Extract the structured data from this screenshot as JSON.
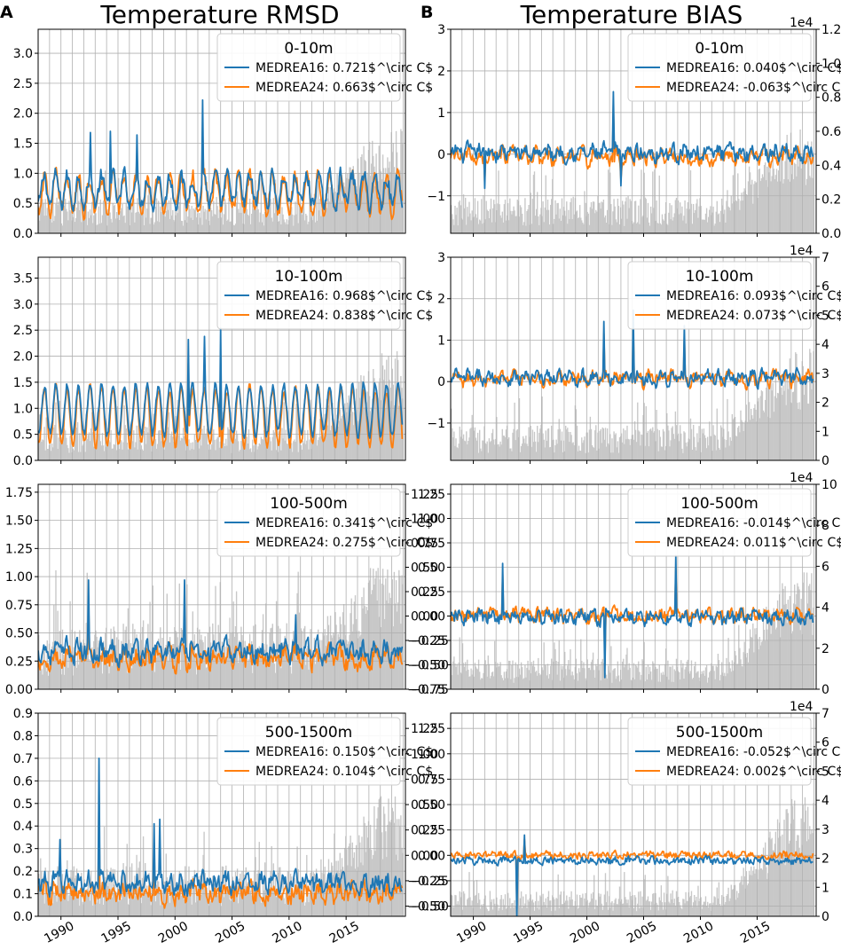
{
  "figure": {
    "panel_a": {
      "letter": "A",
      "title": "Temperature RMSD"
    },
    "panel_b": {
      "letter": "B",
      "title": "Temperature BIAS"
    }
  },
  "colors": {
    "medrea16": "#1f77b4",
    "medrea24": "#ff7f0e",
    "histogram": "#c8c8c8",
    "grid": "#b0b0b0"
  },
  "x_axis": {
    "min": 1988.0,
    "max": 2020.2,
    "ticks": [
      1990,
      1995,
      2000,
      2005,
      2010,
      2015
    ]
  },
  "chart_data": [
    {
      "type": "line",
      "column": "A",
      "title": "Temperature RMSD",
      "depth": "0-10m",
      "ylim": [
        0,
        3.4
      ],
      "yticks": [
        "0.0",
        "0.5",
        "1.0",
        "1.5",
        "2.0",
        "2.5",
        "3.0"
      ],
      "secondary_ylim": [
        0,
        1.2
      ],
      "secondary_yticks": [],
      "secondary_exponent": "",
      "series": [
        {
          "name": "MEDREA16",
          "label": "MEDREA16: 0.721$^\\circ C$",
          "mean": 0.721
        },
        {
          "name": "MEDREA24",
          "label": "MEDREA24: 0.663$^\\circ C$",
          "mean": 0.663
        }
      ],
      "profile": {
        "kind": "rmsd",
        "base": 0.62,
        "seasonal": 0.28,
        "noise": 0.2,
        "spikes": [
          [
            2002.4,
            2.22
          ],
          [
            1994.3,
            1.7
          ],
          [
            1996.7,
            1.64
          ],
          [
            1992.6,
            1.68
          ]
        ]
      },
      "hist_profile": {
        "early": 0.14,
        "late": 0.3
      }
    },
    {
      "type": "line",
      "column": "B",
      "title": "Temperature BIAS",
      "depth": "0-10m",
      "ylim": [
        -1.9,
        3.0
      ],
      "yticks": [
        "−1",
        "0",
        "1",
        "2",
        "3"
      ],
      "secondary_ylim": [
        0,
        1.2
      ],
      "secondary_yticks": [
        "0.0",
        "0.2",
        "0.4",
        "0.6",
        "0.8",
        "1.0",
        "1.2"
      ],
      "secondary_exponent": "1e4",
      "series": [
        {
          "name": "MEDREA16",
          "label": "MEDREA16: 0.040$^\\circ C$",
          "mean": 0.04
        },
        {
          "name": "MEDREA24",
          "label": "MEDREA24: -0.063$^\\circ C$",
          "mean": -0.063
        }
      ],
      "profile": {
        "kind": "bias",
        "base": 0.0,
        "seasonal": 0.18,
        "noise": 0.25,
        "spikes": [
          [
            2002.3,
            1.5
          ],
          [
            1991.0,
            -0.82
          ],
          [
            2003.0,
            -0.76
          ]
        ]
      },
      "hist_profile": {
        "early": 0.14,
        "late": 0.3
      }
    },
    {
      "type": "line",
      "column": "A",
      "title": "Temperature RMSD",
      "depth": "10-100m",
      "ylim": [
        0,
        3.9
      ],
      "yticks": [
        "0.0",
        "0.5",
        "1.0",
        "1.5",
        "2.0",
        "2.5",
        "3.0",
        "3.5"
      ],
      "secondary_ylim": [
        0,
        7
      ],
      "secondary_yticks": [],
      "secondary_exponent": "",
      "series": [
        {
          "name": "MEDREA16",
          "label": "MEDREA16: 0.968$^\\circ C$",
          "mean": 0.968
        },
        {
          "name": "MEDREA24",
          "label": "MEDREA24: 0.838$^\\circ C$",
          "mean": 0.838
        }
      ],
      "profile": {
        "kind": "rmsd",
        "base": 0.82,
        "seasonal": 0.55,
        "noise": 0.12,
        "spikes": [
          [
            2004.0,
            2.54
          ],
          [
            2002.6,
            2.38
          ],
          [
            2001.2,
            2.32
          ]
        ]
      },
      "hist_profile": {
        "early": 0.14,
        "late": 0.32
      }
    },
    {
      "type": "line",
      "column": "B",
      "title": "Temperature BIAS",
      "depth": "10-100m",
      "ylim": [
        -1.9,
        3.0
      ],
      "yticks": [
        "−1",
        "0",
        "1",
        "2",
        "3"
      ],
      "secondary_ylim": [
        0,
        7
      ],
      "secondary_yticks": [
        "0",
        "1",
        "2",
        "3",
        "4",
        "5",
        "6",
        "7"
      ],
      "secondary_exponent": "1e4",
      "series": [
        {
          "name": "MEDREA16",
          "label": "MEDREA16: 0.093$^\\circ C$",
          "mean": 0.093
        },
        {
          "name": "MEDREA24",
          "label": "MEDREA24: 0.073$^\\circ C$",
          "mean": 0.073
        }
      ],
      "profile": {
        "kind": "bias",
        "base": 0.08,
        "seasonal": 0.18,
        "noise": 0.22,
        "spikes": [
          [
            2004.1,
            1.72
          ],
          [
            2001.5,
            1.45
          ],
          [
            2008.6,
            1.35
          ]
        ]
      },
      "hist_profile": {
        "early": 0.14,
        "late": 0.32
      }
    },
    {
      "type": "line",
      "column": "A",
      "title": "Temperature RMSD",
      "depth": "100-500m",
      "ylim": [
        0,
        1.82
      ],
      "yticks": [
        "0.00",
        "0.25",
        "0.50",
        "0.75",
        "1.00",
        "1.25",
        "1.50",
        "1.75"
      ],
      "secondary_ylim": [
        -0.75,
        1.35
      ],
      "secondary_yticks": [
        "−0.75",
        "−0.50",
        "−0.25",
        "0.00",
        "0.25",
        "0.50",
        "0.75",
        "1.00",
        "1.25"
      ],
      "secondary_exponent": "",
      "series": [
        {
          "name": "MEDREA16",
          "label": "MEDREA16: 0.341$^\\circ C$",
          "mean": 0.341
        },
        {
          "name": "MEDREA24",
          "label": "MEDREA24: 0.275$^\\circ C$",
          "mean": 0.275
        }
      ],
      "profile": {
        "kind": "rmsd",
        "base": 0.32,
        "seasonal": 0.05,
        "noise": 0.12,
        "spikes": [
          [
            1992.4,
            0.97
          ],
          [
            2000.8,
            0.97
          ],
          [
            2010.6,
            0.66
          ]
        ]
      },
      "hist_profile": {
        "early": 0.26,
        "late": 0.36
      }
    },
    {
      "type": "line",
      "column": "B",
      "title": "Temperature BIAS",
      "depth": "100-500m",
      "ylim": [
        -0.75,
        1.35
      ],
      "yticks": [
        "−0.75",
        "−0.50",
        "−0.25",
        "0.00",
        "0.25",
        "0.50",
        "0.75",
        "1.00",
        "1.25"
      ],
      "secondary_ylim": [
        0,
        10
      ],
      "secondary_yticks": [
        "0",
        "2",
        "4",
        "6",
        "8",
        "10"
      ],
      "secondary_exponent": "1e4",
      "series": [
        {
          "name": "MEDREA16",
          "label": "MEDREA16: -0.014$^\\circ C$",
          "mean": -0.014
        },
        {
          "name": "MEDREA24",
          "label": "MEDREA24: 0.011$^\\circ C$",
          "mean": 0.011
        }
      ],
      "profile": {
        "kind": "bias",
        "base": 0.0,
        "seasonal": 0.05,
        "noise": 0.1,
        "spikes": [
          [
            1992.6,
            0.54
          ],
          [
            2007.8,
            0.62
          ],
          [
            2001.6,
            -0.63
          ]
        ]
      },
      "hist_profile": {
        "early": 0.12,
        "late": 0.34
      }
    },
    {
      "type": "line",
      "column": "A",
      "title": "Temperature RMSD",
      "depth": "500-1500m",
      "ylim": [
        0,
        0.9
      ],
      "yticks": [
        "0.0",
        "0.1",
        "0.2",
        "0.3",
        "0.4",
        "0.5",
        "0.6",
        "0.7",
        "0.8",
        "0.9"
      ],
      "secondary_ylim": [
        -0.6,
        1.4
      ],
      "secondary_yticks": [
        "−0.50",
        "−0.25",
        "0.00",
        "0.25",
        "0.50",
        "0.75",
        "1.00",
        "1.25"
      ],
      "secondary_exponent": "",
      "series": [
        {
          "name": "MEDREA16",
          "label": "MEDREA16: 0.150$^\\circ C$",
          "mean": 0.15
        },
        {
          "name": "MEDREA24",
          "label": "MEDREA24: 0.104$^\\circ C$",
          "mean": 0.104
        }
      ],
      "profile": {
        "kind": "rmsd",
        "base": 0.15,
        "seasonal": 0.02,
        "noise": 0.06,
        "spikes": [
          [
            1993.3,
            0.7
          ],
          [
            1998.7,
            0.43
          ],
          [
            1998.2,
            0.41
          ],
          [
            1989.9,
            0.34
          ]
        ]
      },
      "hist_profile": {
        "early": 0.2,
        "late": 0.34
      }
    },
    {
      "type": "line",
      "column": "B",
      "title": "Temperature BIAS",
      "depth": "500-1500m",
      "ylim": [
        -0.6,
        1.4
      ],
      "yticks": [
        "−0.50",
        "−0.25",
        "0.00",
        "0.25",
        "0.50",
        "0.75",
        "1.00",
        "1.25"
      ],
      "secondary_ylim": [
        0,
        7
      ],
      "secondary_yticks": [
        "0",
        "1",
        "2",
        "3",
        "4",
        "5",
        "6",
        "7"
      ],
      "secondary_exponent": "1e4",
      "series": [
        {
          "name": "MEDREA16",
          "label": "MEDREA16: -0.052$^\\circ C$",
          "mean": -0.052
        },
        {
          "name": "MEDREA24",
          "label": "MEDREA24: 0.002$^\\circ C$",
          "mean": 0.002
        }
      ],
      "profile": {
        "kind": "bias",
        "base": 0.0,
        "seasonal": 0.02,
        "noise": 0.05,
        "spikes": [
          [
            1993.8,
            -0.6
          ],
          [
            1994.5,
            0.2
          ]
        ]
      },
      "hist_profile": {
        "early": 0.1,
        "late": 0.34
      }
    }
  ]
}
